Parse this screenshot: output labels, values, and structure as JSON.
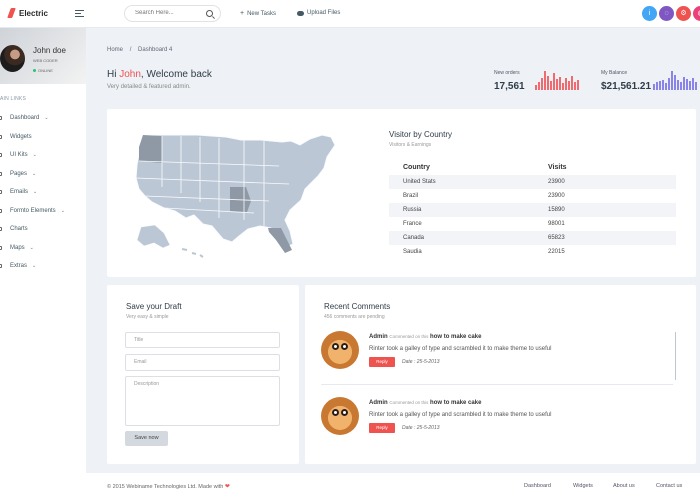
{
  "brand": "Electric",
  "topbar": {
    "search_placeholder": "Search Here...",
    "new_tasks": "New Tasks",
    "upload_files": "Upload Files",
    "icon_buttons": [
      {
        "name": "info-icon",
        "color": "#42a5f5",
        "glyph": "i"
      },
      {
        "name": "chat-icon",
        "color": "#7e57c2",
        "glyph": "◌"
      },
      {
        "name": "settings-icon",
        "color": "#ef5350",
        "glyph": "⚙"
      },
      {
        "name": "app-icon",
        "color": "#ec407a",
        "glyph": "◍"
      }
    ]
  },
  "sidebar": {
    "user_name": "John doe",
    "user_role": "WEB CODER",
    "status": "ONLINE",
    "section_title": "AIN LINKS",
    "items": [
      {
        "label": "Dashboard",
        "has_arrow": true
      },
      {
        "label": "Widgets",
        "has_arrow": false
      },
      {
        "label": "UI Kits",
        "has_arrow": true
      },
      {
        "label": "Pages",
        "has_arrow": true
      },
      {
        "label": "Emails",
        "has_arrow": true
      },
      {
        "label": "Formto Elements",
        "has_arrow": true
      },
      {
        "label": "Charts",
        "has_arrow": false
      },
      {
        "label": "Maps",
        "has_arrow": true
      },
      {
        "label": "Extras",
        "has_arrow": true
      }
    ]
  },
  "breadcrumb": {
    "home": "Home",
    "sep": "/",
    "current": "Dashboard 4"
  },
  "welcome": {
    "prefix": "Hi ",
    "name": "John",
    "suffix": ", Welcome back",
    "subtitle": "Very detailed & featured admin."
  },
  "stats": {
    "orders_label": "New orders",
    "orders_value": "17,561",
    "orders_color": "#ef6b70",
    "orders_bars": [
      5,
      8,
      12,
      19,
      14,
      9,
      17,
      11,
      13,
      7,
      12,
      9,
      14,
      8,
      10
    ],
    "balance_label": "My Balance",
    "balance_value": "$21,561.21",
    "balance_color": "#8a84e8",
    "balance_bars": [
      6,
      8,
      9,
      10,
      7,
      12,
      19,
      15,
      10,
      8,
      13,
      11,
      9,
      12,
      8
    ]
  },
  "visitors": {
    "title": "Visitor by Country",
    "subtitle": "Visitors & Earnings",
    "header_country": "Country",
    "header_visits": "Visits",
    "rows": [
      {
        "country": "United Stats",
        "visits": "23900"
      },
      {
        "country": "Brazil",
        "visits": "23900"
      },
      {
        "country": "Russia",
        "visits": "15890"
      },
      {
        "country": "France",
        "visits": "98001"
      },
      {
        "country": "Canada",
        "visits": "65823"
      },
      {
        "country": "Saudia",
        "visits": "22015"
      }
    ]
  },
  "draft": {
    "title": "Save your Draft",
    "subtitle": "Very easy & simple",
    "title_placeholder": "Title",
    "email_placeholder": "Email",
    "description_placeholder": "Description",
    "save_button": "Save now"
  },
  "comments": {
    "title": "Recent Comments",
    "subtitle": "456 comments are pending",
    "items": [
      {
        "author": "Admin",
        "commented_on": "Commented on this",
        "topic": "how to make cake",
        "text": "Rinter took a galley of type and scrambled it to make theme to useful",
        "reply": "Reply",
        "date": "Date : 25-5-2013"
      },
      {
        "author": "Admin",
        "commented_on": "Commented on this",
        "topic": "how to make cake",
        "text": "Rinter took a galley of type and scrambled it to make theme to useful",
        "reply": "Reply",
        "date": "Date : 25-5-2013"
      }
    ]
  },
  "footer": {
    "copyright_prefix": "© 2015 Webiname Technologies Ltd. Made with",
    "heart": "❤",
    "links": [
      "Dashboard",
      "Widgets",
      "About us",
      "Contact us"
    ]
  }
}
